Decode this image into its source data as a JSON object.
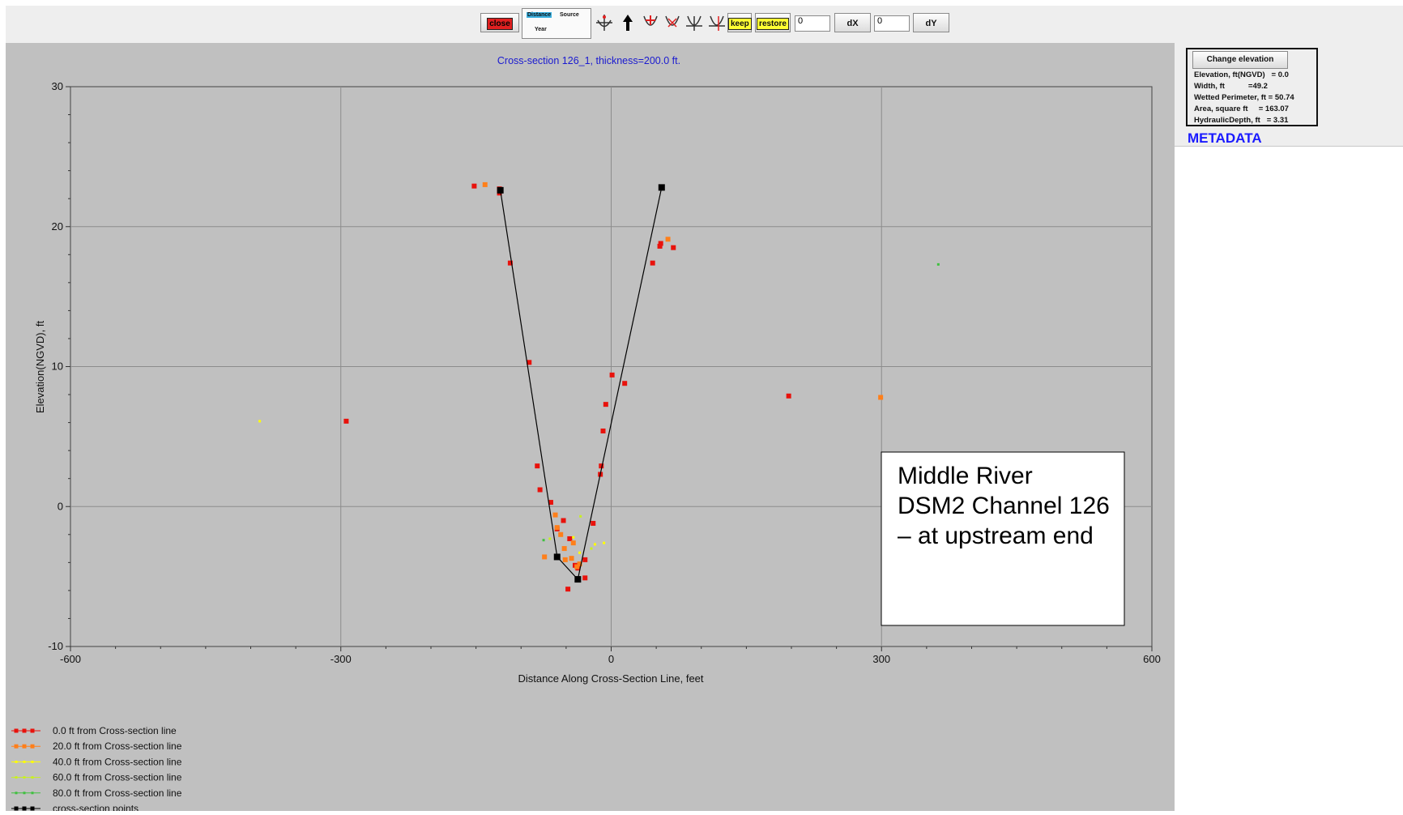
{
  "toolbar": {
    "close_label": "close",
    "tab_distance": "Distance",
    "tab_source": "Source",
    "tab_year": "Year",
    "keep_label": "keep",
    "restore_label": "restore",
    "dx_value": "0",
    "dx_label": "dX",
    "dy_value": "0",
    "dy_label": "dY"
  },
  "side": {
    "change_elevation_label": "Change elevation",
    "info_lines": [
      "Elevation, ft(NGVD)   = 0.0",
      "Width, ft           =49.2",
      "Wetted Perimeter, ft = 50.74",
      "Area, square ft     = 163.07",
      "HydraulicDepth, ft   = 3.31"
    ],
    "metadata_label": "METADATA"
  },
  "annotation": {
    "lines": [
      "Middle River",
      "DSM2 Channel 126",
      "– at upstream end"
    ]
  },
  "chart_data": {
    "type": "scatter",
    "title": "Cross-section 126_1, thickness=200.0 ft.",
    "xlabel": "Distance Along Cross-Section Line, feet",
    "ylabel": "Elevation(NGVD), ft",
    "xlim": [
      -600,
      600
    ],
    "ylim": [
      -10,
      30
    ],
    "xticks": [
      "-600",
      "-300",
      "0",
      "300",
      "600"
    ],
    "yticks": [
      "-10",
      "0",
      "10",
      "20",
      "30"
    ],
    "grid": true,
    "legend_position": "bottom-left",
    "series": [
      {
        "name": "0.0 ft from Cross-section line",
        "color": "#e8120c",
        "marker": "square",
        "points": [
          [
            -152,
            22.9
          ],
          [
            -124,
            22.4
          ],
          [
            -124,
            22.7
          ],
          [
            -112,
            17.4
          ],
          [
            -91,
            10.3
          ],
          [
            -82,
            2.9
          ],
          [
            -79,
            1.2
          ],
          [
            -67,
            0.3
          ],
          [
            -60,
            -1.6
          ],
          [
            -53,
            -1.0
          ],
          [
            -46,
            -2.3
          ],
          [
            -48,
            -5.9
          ],
          [
            -40,
            -4.2
          ],
          [
            -37,
            -4.4
          ],
          [
            -29,
            -3.8
          ],
          [
            -29,
            -5.1
          ],
          [
            -20,
            -1.2
          ],
          [
            -12,
            2.3
          ],
          [
            -11,
            2.9
          ],
          [
            -9,
            5.4
          ],
          [
            -6,
            7.3
          ],
          [
            1,
            9.4
          ],
          [
            15,
            8.8
          ],
          [
            46,
            17.4
          ],
          [
            54,
            18.6
          ],
          [
            55,
            18.8
          ],
          [
            69,
            18.5
          ],
          [
            197,
            7.9
          ],
          [
            -294,
            6.1
          ]
        ]
      },
      {
        "name": "20.0 ft from Cross-section line",
        "color": "#ff7f1a",
        "marker": "square",
        "points": [
          [
            -140,
            23.0
          ],
          [
            -62,
            -0.6
          ],
          [
            -60,
            -1.5
          ],
          [
            -56,
            -2.0
          ],
          [
            -52,
            -3.0
          ],
          [
            -51,
            -3.8
          ],
          [
            -44,
            -3.7
          ],
          [
            -42,
            -2.6
          ],
          [
            -38,
            -4.3
          ],
          [
            -35,
            -4.1
          ],
          [
            -74,
            -3.6
          ],
          [
            63,
            19.1
          ],
          [
            299,
            7.8
          ]
        ]
      },
      {
        "name": "40.0 ft from Cross-section line",
        "color": "#ffff00",
        "marker": "dot",
        "points": [
          [
            -390,
            6.1
          ],
          [
            -42,
            -2.2
          ],
          [
            -35,
            -3.3
          ],
          [
            -18,
            -2.7
          ],
          [
            -8,
            -2.6
          ]
        ]
      },
      {
        "name": "60.0 ft from Cross-section line",
        "color": "#c8f020",
        "marker": "dot",
        "points": [
          [
            -34,
            -0.7
          ],
          [
            -68,
            -2.3
          ],
          [
            -22,
            -3.0
          ]
        ]
      },
      {
        "name": "80.0 ft from Cross-section line",
        "color": "#40c040",
        "marker": "dot",
        "points": [
          [
            -75,
            -2.4
          ],
          [
            363,
            17.3
          ]
        ]
      },
      {
        "name": "cross-section points",
        "color": "#000000",
        "marker": "square-line",
        "points": [
          [
            -123,
            22.6
          ],
          [
            -60,
            -3.6
          ],
          [
            -37,
            -5.2
          ],
          [
            56,
            22.8
          ]
        ]
      }
    ]
  }
}
